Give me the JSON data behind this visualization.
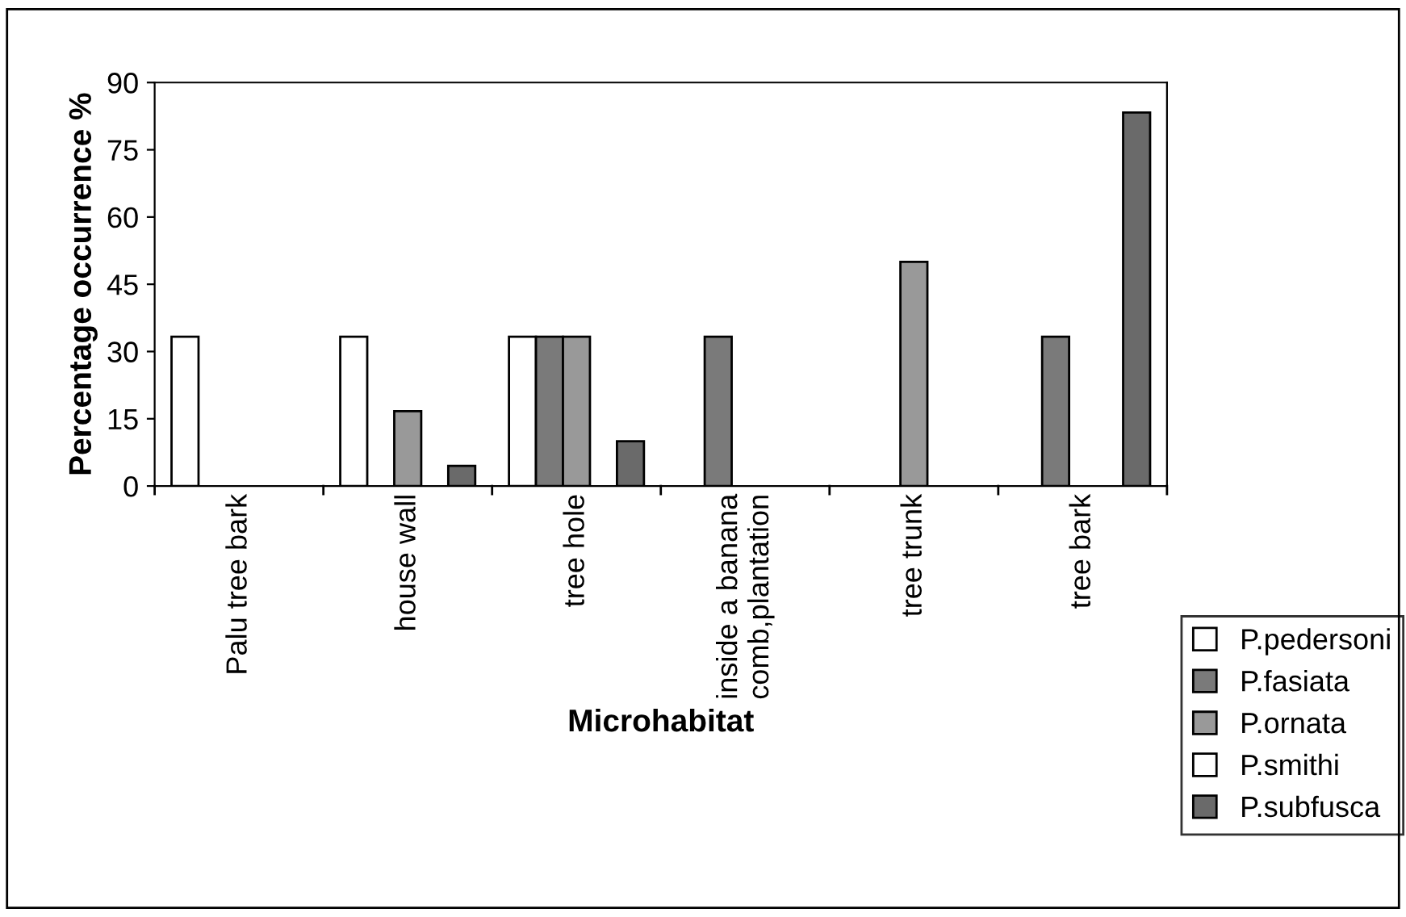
{
  "chart_data": {
    "type": "bar",
    "xlabel": "Microhabitat",
    "ylabel": "Percentage occurrence %",
    "categories": [
      "Palu tree bark",
      "house wall",
      "tree hole",
      "inside a banana\ncomb,plantation",
      "tree trunk",
      "tree bark"
    ],
    "series": [
      {
        "name": "P.pedersoni",
        "color": "#ffffff",
        "values": [
          33.3,
          33.3,
          33.3,
          null,
          null,
          null
        ]
      },
      {
        "name": "P.fasiata",
        "color": "#7a7a7a",
        "values": [
          null,
          null,
          33.3,
          33.3,
          null,
          33.3
        ]
      },
      {
        "name": "P.ornata",
        "color": "#999999",
        "values": [
          null,
          16.7,
          33.3,
          null,
          50,
          null
        ]
      },
      {
        "name": "P.smithi",
        "color": "#ffffff",
        "values": [
          null,
          null,
          null,
          null,
          null,
          null
        ]
      },
      {
        "name": "P.subfusca",
        "color": "#6a6a6a",
        "values": [
          null,
          4.5,
          10,
          null,
          null,
          83.3
        ]
      }
    ],
    "ylim": [
      0,
      90
    ],
    "yticks": [
      0,
      15,
      30,
      45,
      60,
      75,
      90
    ],
    "grid": false,
    "legend": "bottom right"
  }
}
